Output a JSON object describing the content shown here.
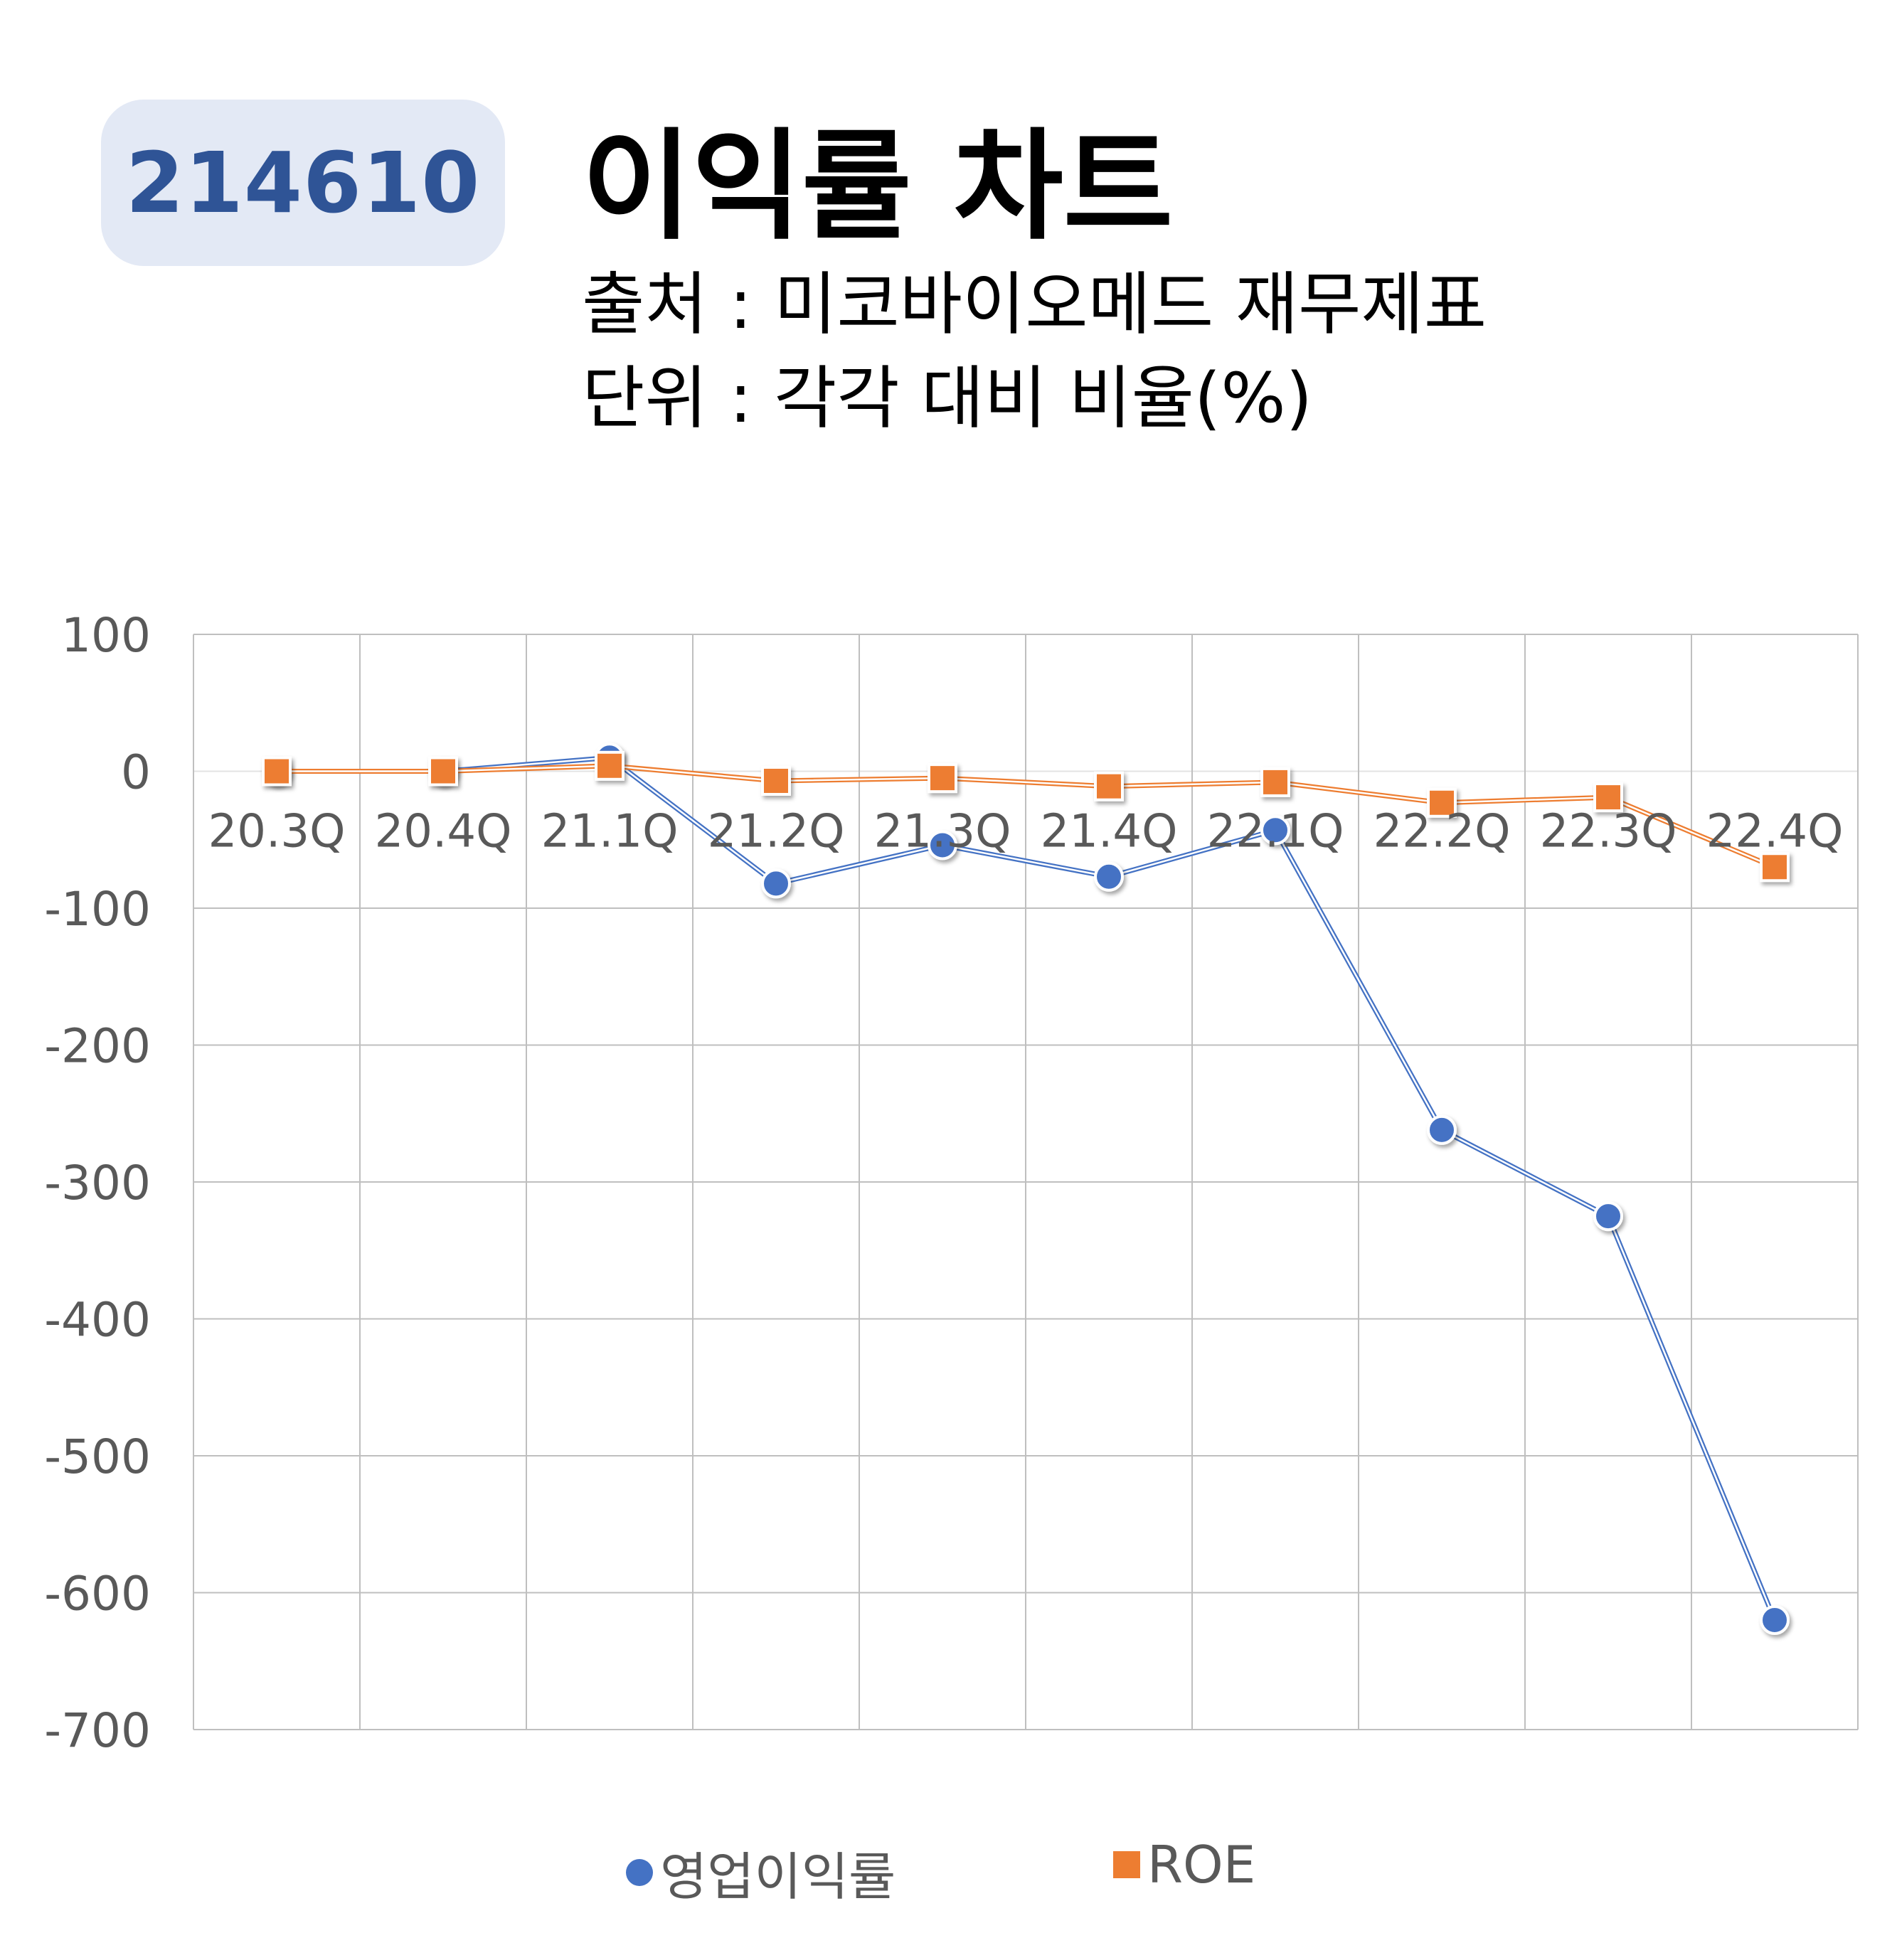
{
  "header": {
    "code": "214610",
    "title": "이익률 차트",
    "source": "출처 : 미코바이오메드 재무제표",
    "unit": "단위 : 각각 대비 비율(%)"
  },
  "chart_data": {
    "type": "line",
    "categories": [
      "20.3Q",
      "20.4Q",
      "21.1Q",
      "21.2Q",
      "21.3Q",
      "21.4Q",
      "22.1Q",
      "22.2Q",
      "22.3Q",
      "22.4Q"
    ],
    "series": [
      {
        "name": "영업이익률",
        "color": "#4472c4",
        "marker": "circle",
        "values": [
          0,
          0,
          10,
          -82,
          -54,
          -77,
          -43,
          -262,
          -325,
          -620
        ]
      },
      {
        "name": "ROE",
        "color": "#ed7d31",
        "marker": "square",
        "values": [
          0,
          0,
          4,
          -7,
          -5,
          -11,
          -8,
          -23,
          -19,
          -70
        ]
      }
    ],
    "yticks": [
      "100",
      "0",
      "-100",
      "-200",
      "-300",
      "-400",
      "-500",
      "-600",
      "-700"
    ],
    "ylim": [
      -700,
      100
    ],
    "grid": true,
    "legend_position": "bottom"
  }
}
